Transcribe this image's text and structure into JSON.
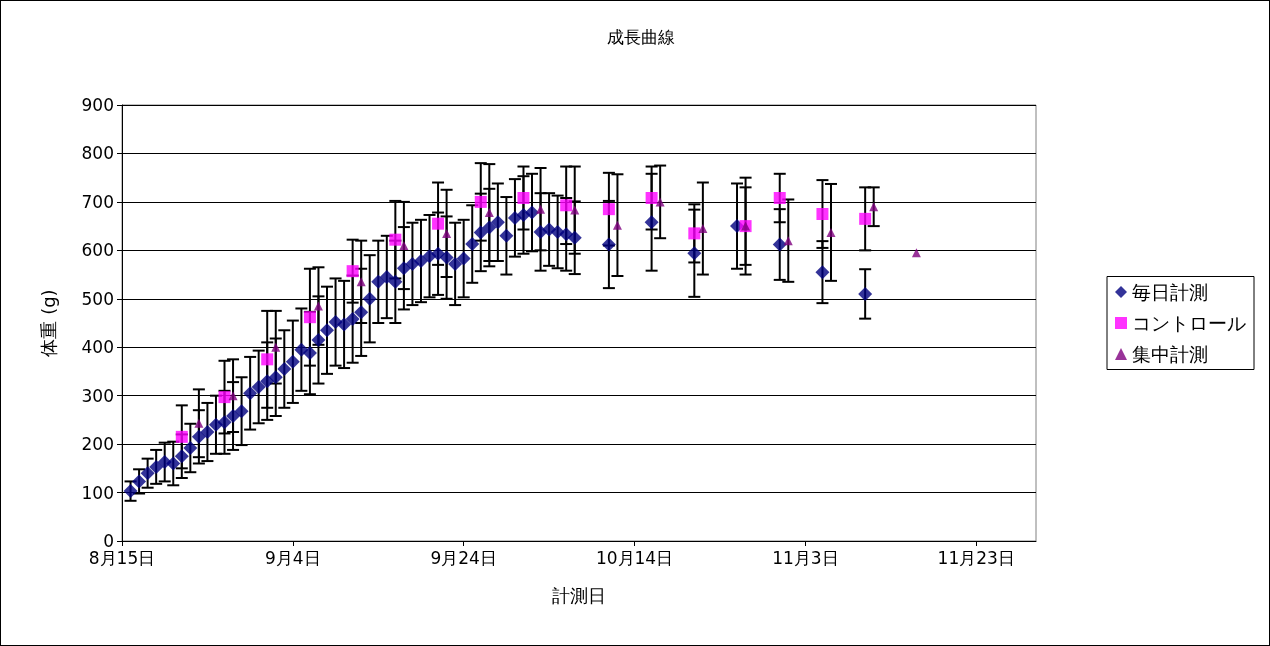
{
  "chart_data": {
    "type": "scatter",
    "title": "成長曲線",
    "xlabel": "計測日",
    "ylabel": "体重 (g)",
    "xlim": [
      "--08-15",
      "--11-30"
    ],
    "xticks": [
      {
        "value": "--08-15",
        "label": "8月15日"
      },
      {
        "value": "--09-04",
        "label": "9月4日"
      },
      {
        "value": "--09-24",
        "label": "9月24日"
      },
      {
        "value": "--10-14",
        "label": "10月14日"
      },
      {
        "value": "--11-03",
        "label": "11月3日"
      },
      {
        "value": "--11-23",
        "label": "11月23日"
      }
    ],
    "ylim": [
      0,
      900
    ],
    "yticks": [
      0,
      100,
      200,
      300,
      400,
      500,
      600,
      700,
      800,
      900
    ],
    "grid": "y",
    "legend": "right",
    "series": [
      {
        "name": "毎日計測",
        "color": "#000080",
        "marker": "diamond",
        "x": [
          "--08-16",
          "--08-17",
          "--08-18",
          "--08-19",
          "--08-20",
          "--08-21",
          "--08-22",
          "--08-23",
          "--08-24",
          "--08-25",
          "--08-26",
          "--08-27",
          "--08-28",
          "--08-29",
          "--08-30",
          "--08-31",
          "--09-01",
          "--09-02",
          "--09-03",
          "--09-04",
          "--09-05",
          "--09-06",
          "--09-07",
          "--09-08",
          "--09-09",
          "--09-10",
          "--09-11",
          "--09-12",
          "--09-13",
          "--09-14",
          "--09-15",
          "--09-16",
          "--09-17",
          "--09-18",
          "--09-19",
          "--09-20",
          "--09-21",
          "--09-22",
          "--09-23",
          "--09-24",
          "--09-25",
          "--09-26",
          "--09-27",
          "--09-28",
          "--09-29",
          "--09-30",
          "--10-01",
          "--10-02",
          "--10-03",
          "--10-04",
          "--10-05",
          "--10-06",
          "--10-07",
          "--10-11",
          "--10-16",
          "--10-21",
          "--10-26",
          "--10-31",
          "--11-05",
          "--11-10"
        ],
        "values": [
          103,
          123,
          140,
          153,
          163,
          160,
          175,
          192,
          215,
          225,
          240,
          245,
          258,
          268,
          305,
          318,
          330,
          338,
          355,
          370,
          395,
          388,
          415,
          435,
          452,
          447,
          458,
          472,
          500,
          535,
          545,
          535,
          563,
          572,
          578,
          588,
          593,
          585,
          572,
          583,
          613,
          637,
          647,
          658,
          630,
          667,
          673,
          678,
          638,
          643,
          638,
          633,
          626,
          612,
          658,
          594,
          650,
          612,
          555,
          510
        ],
        "errors": [
          20,
          25,
          30,
          35,
          40,
          45,
          45,
          50,
          55,
          60,
          60,
          65,
          70,
          70,
          75,
          75,
          80,
          80,
          80,
          85,
          85,
          85,
          90,
          90,
          90,
          90,
          90,
          90,
          90,
          85,
          85,
          85,
          85,
          85,
          85,
          85,
          85,
          85,
          85,
          80,
          80,
          80,
          80,
          80,
          80,
          80,
          80,
          80,
          80,
          75,
          75,
          75,
          75,
          90,
          100,
          90,
          88,
          73,
          64,
          51
        ]
      },
      {
        "name": "コントロール",
        "color": "#ff00ff",
        "marker": "square",
        "x": [
          "--08-22",
          "--08-27",
          "--09-01",
          "--09-06",
          "--09-11",
          "--09-16",
          "--09-21",
          "--09-26",
          "--10-01",
          "--10-06",
          "--10-11",
          "--10-16",
          "--10-21",
          "--10-27",
          "--10-31",
          "--11-05",
          "--11-10"
        ],
        "values": [
          215,
          297,
          375,
          462,
          557,
          622,
          655,
          700,
          708,
          693,
          685,
          708,
          635,
          650,
          708,
          675,
          665
        ],
        "errors": [
          65,
          75,
          100,
          100,
          65,
          80,
          85,
          80,
          65,
          80,
          75,
          65,
          60,
          100,
          50,
          70,
          65
        ]
      },
      {
        "name": "集中計測",
        "color": "#800080",
        "marker": "triangle",
        "x": [
          "--08-24",
          "--08-28",
          "--09-02",
          "--09-07",
          "--09-12",
          "--09-17",
          "--09-22",
          "--09-27",
          "--10-03",
          "--10-07",
          "--10-12",
          "--10-17",
          "--10-22",
          "--10-27",
          "--11-01",
          "--11-06",
          "--11-11",
          "--11-16"
        ],
        "values": [
          243,
          300,
          400,
          485,
          535,
          610,
          635,
          678,
          685,
          683,
          652,
          700,
          645,
          650,
          620,
          637,
          690,
          595
        ],
        "errors": [
          70,
          75,
          75,
          80,
          85,
          90,
          90,
          100,
          85,
          90,
          105,
          75,
          95,
          80,
          85,
          100,
          40,
          null
        ]
      }
    ]
  }
}
